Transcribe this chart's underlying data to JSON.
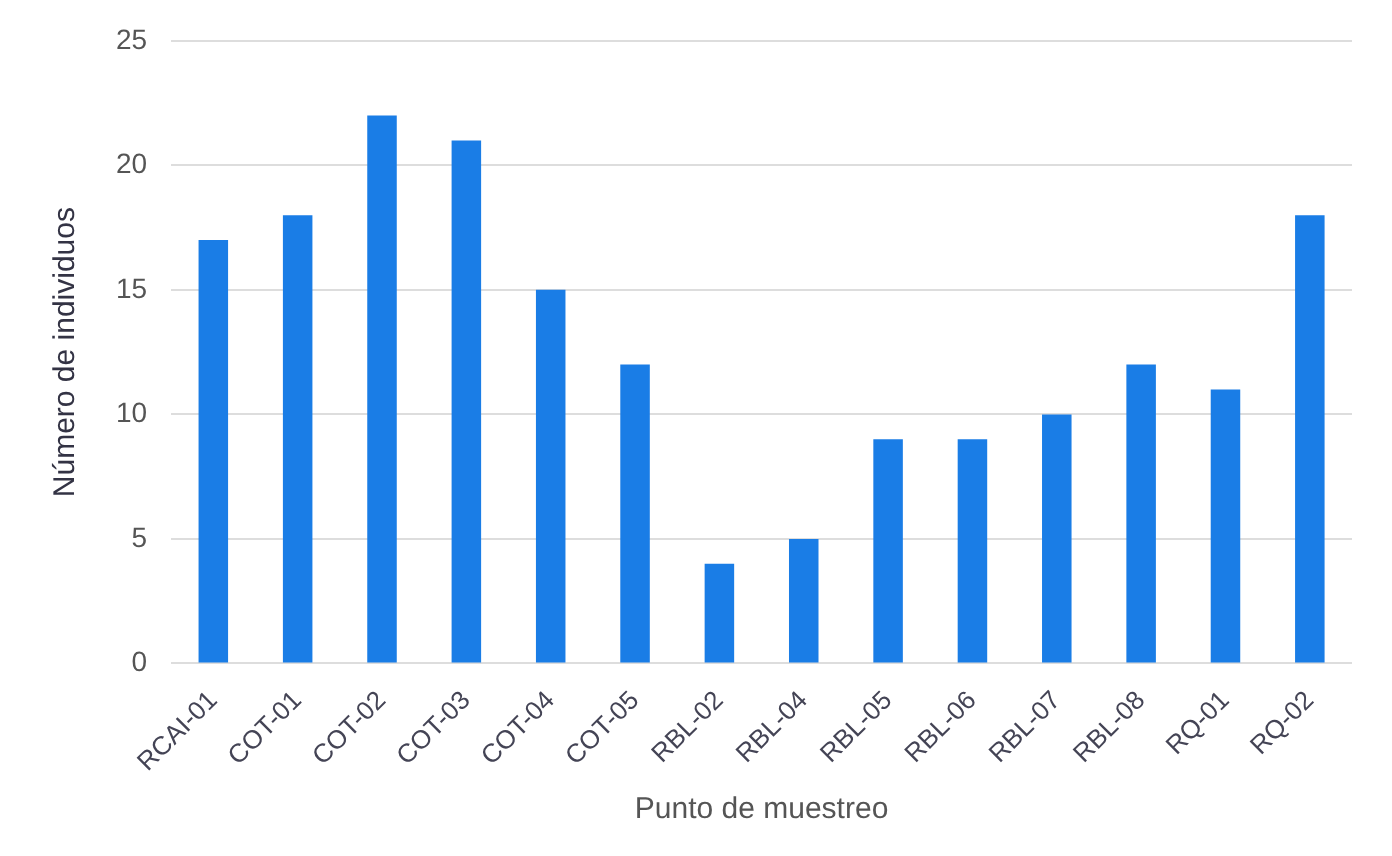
{
  "chart_data": {
    "type": "bar",
    "xlabel": "Punto de muestreo",
    "ylabel": "Número de individuos",
    "categories": [
      "RCAI-01",
      "COT-01",
      "COT-02",
      "COT-03",
      "COT-04",
      "COT-05",
      "RBL-02",
      "RBL-04",
      "RBL-05",
      "RBL-06",
      "RBL-07",
      "RBL-08",
      "RQ-01",
      "RQ-02"
    ],
    "values": [
      17,
      18,
      22,
      21,
      15,
      12,
      4,
      5,
      9,
      9,
      10,
      12,
      11,
      18
    ],
    "color": "#1a7de6",
    "ylim": [
      0,
      25
    ],
    "yticks": [
      0,
      5,
      10,
      15,
      20,
      25
    ],
    "grid": "y"
  }
}
